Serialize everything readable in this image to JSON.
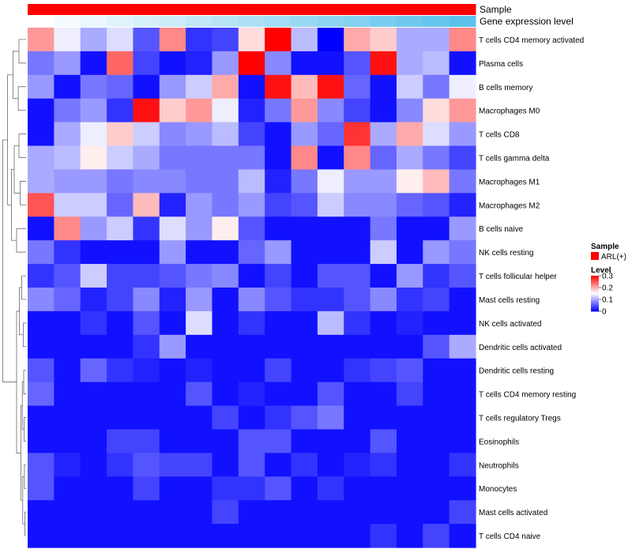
{
  "chart_data": {
    "type": "heatmap",
    "annotations": [
      {
        "name": "Sample",
        "values": [
          "ARL(+)",
          "ARL(+)",
          "ARL(+)",
          "ARL(+)",
          "ARL(+)",
          "ARL(+)",
          "ARL(+)",
          "ARL(+)",
          "ARL(+)",
          "ARL(+)",
          "ARL(+)",
          "ARL(+)",
          "ARL(+)",
          "ARL(+)",
          "ARL(+)",
          "ARL(+)",
          "ARL(+)"
        ],
        "color": "#ff0000"
      },
      {
        "name": "Gene expression level",
        "values": [
          0.0,
          0.06,
          0.12,
          0.18,
          0.24,
          0.3,
          0.36,
          0.42,
          0.48,
          0.54,
          0.6,
          0.66,
          0.72,
          0.78,
          0.84,
          0.9,
          0.96
        ],
        "color_low": "#ffffff",
        "color_high": "#55bfea"
      }
    ],
    "rows": [
      {
        "label": "T cells CD4 memory activated",
        "values": [
          0.21,
          0.14,
          0.1,
          0.13,
          0.05,
          0.22,
          0.03,
          0.04,
          0.17,
          0.3,
          0.11,
          0.0,
          0.2,
          0.18,
          0.1,
          0.1,
          0.22
        ]
      },
      {
        "label": "Plasma cells",
        "values": [
          0.07,
          0.09,
          0.01,
          0.24,
          0.04,
          0.01,
          0.02,
          0.09,
          0.3,
          0.08,
          0.01,
          0.01,
          0.05,
          0.29,
          0.1,
          0.11,
          0.01
        ]
      },
      {
        "label": "B cells memory",
        "values": [
          0.09,
          0.01,
          0.07,
          0.06,
          0.01,
          0.09,
          0.12,
          0.2,
          0.01,
          0.29,
          0.19,
          0.29,
          0.06,
          0.01,
          0.12,
          0.07,
          0.14
        ]
      },
      {
        "label": "Macrophages M0",
        "values": [
          0.01,
          0.07,
          0.09,
          0.03,
          0.29,
          0.18,
          0.21,
          0.14,
          0.02,
          0.07,
          0.21,
          0.08,
          0.04,
          0.01,
          0.08,
          0.17,
          0.21
        ]
      },
      {
        "label": "T cells CD8",
        "values": [
          0.01,
          0.1,
          0.14,
          0.18,
          0.12,
          0.08,
          0.09,
          0.11,
          0.04,
          0.01,
          0.09,
          0.06,
          0.27,
          0.1,
          0.2,
          0.13,
          0.09
        ]
      },
      {
        "label": "T cells gamma delta",
        "values": [
          0.1,
          0.11,
          0.16,
          0.12,
          0.1,
          0.07,
          0.07,
          0.07,
          0.07,
          0.01,
          0.22,
          0.01,
          0.22,
          0.06,
          0.1,
          0.07,
          0.04
        ]
      },
      {
        "label": "Macrophages M1",
        "values": [
          0.1,
          0.09,
          0.09,
          0.07,
          0.08,
          0.08,
          0.07,
          0.07,
          0.11,
          0.02,
          0.07,
          0.14,
          0.09,
          0.09,
          0.16,
          0.19,
          0.07
        ]
      },
      {
        "label": "Macrophages M2",
        "values": [
          0.25,
          0.12,
          0.12,
          0.06,
          0.19,
          0.02,
          0.09,
          0.07,
          0.09,
          0.04,
          0.05,
          0.12,
          0.08,
          0.08,
          0.06,
          0.05,
          0.02
        ]
      },
      {
        "label": "B cells naive",
        "values": [
          0.01,
          0.22,
          0.09,
          0.12,
          0.03,
          0.13,
          0.09,
          0.16,
          0.05,
          0.01,
          0.01,
          0.01,
          0.01,
          0.07,
          0.01,
          0.01,
          0.09
        ]
      },
      {
        "label": "NK cells resting",
        "values": [
          0.07,
          0.03,
          0.01,
          0.01,
          0.01,
          0.09,
          0.01,
          0.01,
          0.06,
          0.09,
          0.01,
          0.01,
          0.01,
          0.12,
          0.01,
          0.09,
          0.07
        ]
      },
      {
        "label": "T cells follicular helper",
        "values": [
          0.03,
          0.05,
          0.12,
          0.04,
          0.04,
          0.05,
          0.07,
          0.08,
          0.01,
          0.04,
          0.01,
          0.05,
          0.05,
          0.01,
          0.09,
          0.03,
          0.05
        ]
      },
      {
        "label": "Mast cells resting",
        "values": [
          0.08,
          0.06,
          0.02,
          0.04,
          0.08,
          0.02,
          0.09,
          0.01,
          0.08,
          0.05,
          0.03,
          0.03,
          0.05,
          0.08,
          0.03,
          0.04,
          0.01
        ]
      },
      {
        "label": "NK cells activated",
        "values": [
          0.01,
          0.01,
          0.03,
          0.01,
          0.05,
          0.01,
          0.13,
          0.01,
          0.03,
          0.01,
          0.01,
          0.11,
          0.03,
          0.01,
          0.02,
          0.01,
          0.01
        ]
      },
      {
        "label": "Dendritic cells activated",
        "values": [
          0.01,
          0.01,
          0.01,
          0.01,
          0.03,
          0.09,
          0.01,
          0.01,
          0.01,
          0.01,
          0.01,
          0.01,
          0.01,
          0.01,
          0.01,
          0.05,
          0.1
        ]
      },
      {
        "label": "Dendritic cells resting",
        "values": [
          0.05,
          0.01,
          0.06,
          0.03,
          0.02,
          0.01,
          0.02,
          0.01,
          0.01,
          0.04,
          0.01,
          0.01,
          0.03,
          0.04,
          0.05,
          0.01,
          0.01
        ]
      },
      {
        "label": "T cells CD4 memory resting",
        "values": [
          0.06,
          0.01,
          0.01,
          0.01,
          0.01,
          0.01,
          0.05,
          0.01,
          0.02,
          0.01,
          0.01,
          0.05,
          0.01,
          0.01,
          0.04,
          0.01,
          0.01
        ]
      },
      {
        "label": "T cells regulatory  Tregs",
        "values": [
          0.01,
          0.01,
          0.01,
          0.01,
          0.01,
          0.01,
          0.01,
          0.04,
          0.01,
          0.03,
          0.05,
          0.07,
          0.01,
          0.01,
          0.01,
          0.01,
          0.01
        ]
      },
      {
        "label": "Eosinophils",
        "values": [
          0.01,
          0.01,
          0.01,
          0.04,
          0.04,
          0.01,
          0.01,
          0.01,
          0.05,
          0.05,
          0.01,
          0.01,
          0.01,
          0.05,
          0.01,
          0.01,
          0.01
        ]
      },
      {
        "label": "Neutrophils",
        "values": [
          0.05,
          0.02,
          0.01,
          0.03,
          0.05,
          0.04,
          0.04,
          0.01,
          0.05,
          0.01,
          0.03,
          0.01,
          0.02,
          0.03,
          0.01,
          0.01,
          0.03
        ]
      },
      {
        "label": "Monocytes",
        "values": [
          0.05,
          0.01,
          0.01,
          0.01,
          0.04,
          0.01,
          0.01,
          0.03,
          0.03,
          0.05,
          0.01,
          0.03,
          0.01,
          0.01,
          0.01,
          0.01,
          0.01
        ]
      },
      {
        "label": "Mast cells activated",
        "values": [
          0.01,
          0.01,
          0.01,
          0.01,
          0.01,
          0.01,
          0.01,
          0.04,
          0.01,
          0.01,
          0.01,
          0.01,
          0.01,
          0.01,
          0.01,
          0.01,
          0.04
        ]
      },
      {
        "label": "T cells CD4 naive",
        "values": [
          0.01,
          0.01,
          0.01,
          0.01,
          0.01,
          0.01,
          0.01,
          0.01,
          0.01,
          0.01,
          0.01,
          0.01,
          0.01,
          0.03,
          0.01,
          0.04,
          0.01
        ]
      }
    ],
    "color_scale": {
      "min": 0,
      "mid": 0.15,
      "max": 0.3,
      "low": "#0000ff",
      "mid_color": "#ffffff",
      "high": "#ff0000"
    },
    "legend": {
      "sample": {
        "title": "Sample",
        "label": "ARL(+)",
        "color": "#ff0000"
      },
      "level": {
        "title": "Level",
        "ticks": [
          {
            "value": 0.3,
            "label": "0.3"
          },
          {
            "value": 0.2,
            "label": "0.2"
          },
          {
            "value": 0.1,
            "label": "0.1"
          },
          {
            "value": 0,
            "label": "0"
          }
        ]
      }
    },
    "dendrogram": "rows",
    "legend_position": "right"
  }
}
